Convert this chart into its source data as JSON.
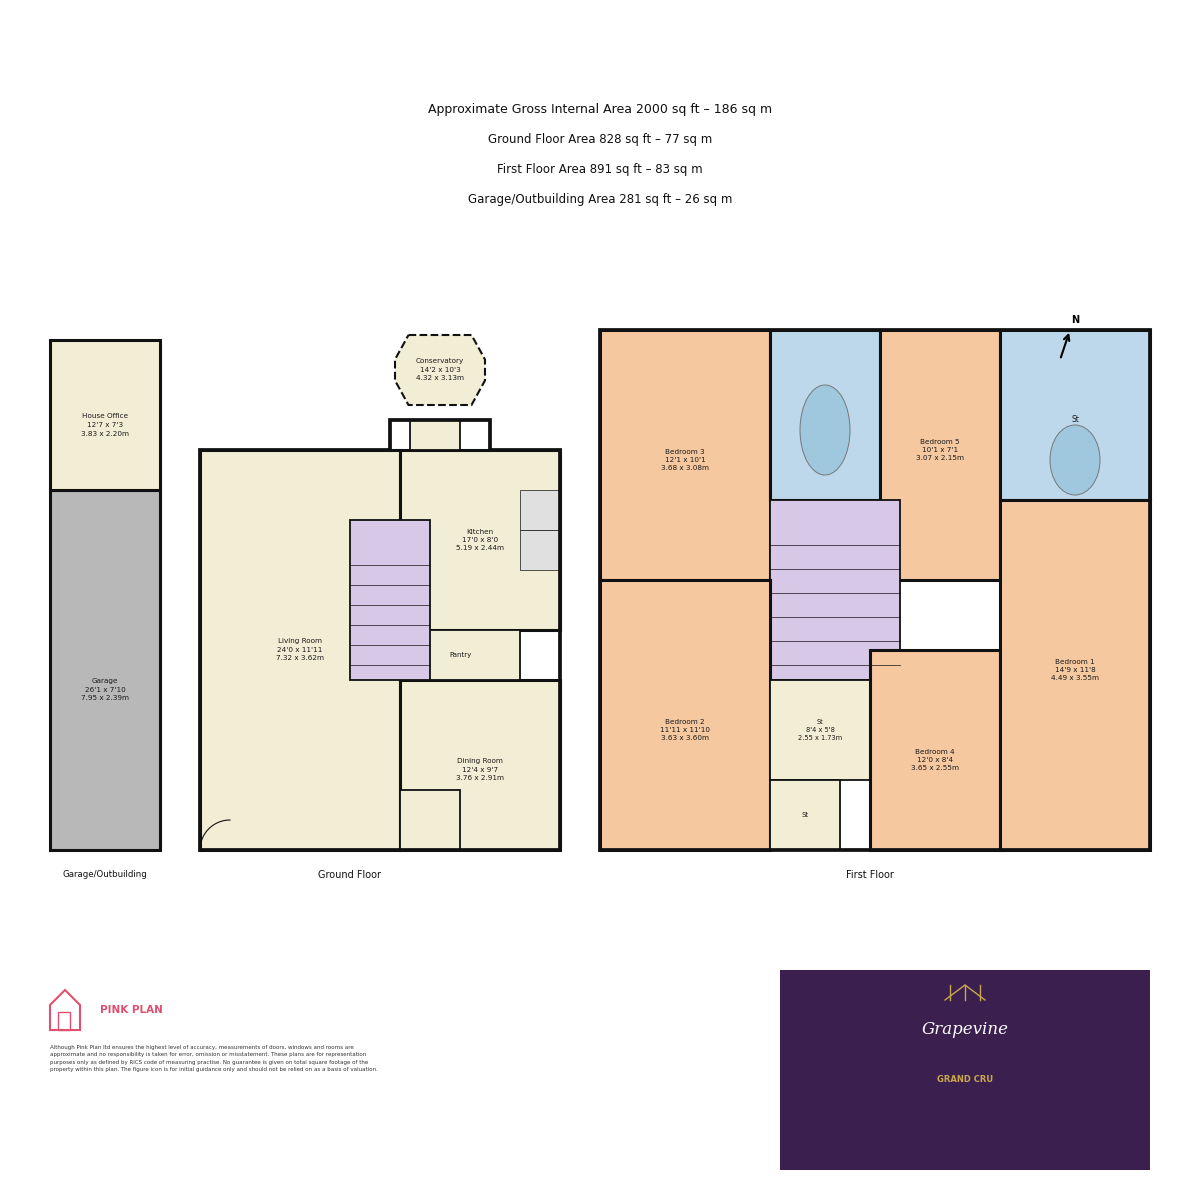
{
  "title_lines": [
    "Approximate Gross Internal Area 2000 sq ft – 186 sq m",
    "Ground Floor Area 828 sq ft – 77 sq m",
    "First Floor Area 891 sq ft – 83 sq m",
    "Garage/Outbuilding Area 281 sq ft – 26 sq m"
  ],
  "bg_color": "#ffffff",
  "wall_color": "#111111",
  "yellow_fill": "#f2eed5",
  "peach_fill": "#f5c8a0",
  "blue_fill": "#bcd8ea",
  "purple_fill": "#d8c8e8",
  "gray_fill": "#b8b8b8",
  "disclaimer": "Although Pink Plan ltd ensures the highest level of accuracy, measurements of doors, windows and rooms are\napproximate and no responsibility is taken for error, omission or misstatement. These plans are for representation\npurposes only as defined by RICS code of measuring practise. No guarantee is given on total square footage of the\nproperty within this plan. The figure icon is for initial guidance only and should not be relied on as a basis of valuation.",
  "pink_plan_text": "PINK PLAN",
  "grapevine_bg": "#3b1f4e",
  "grapevine_text": "Grapevine",
  "grand_cru_text": "GRAND CRU",
  "grand_cru_color": "#c9a84c",
  "pink_color": "#e05070",
  "label_fontsize": 5.5,
  "wall_lw": 2.2,
  "inner_lw": 1.3
}
